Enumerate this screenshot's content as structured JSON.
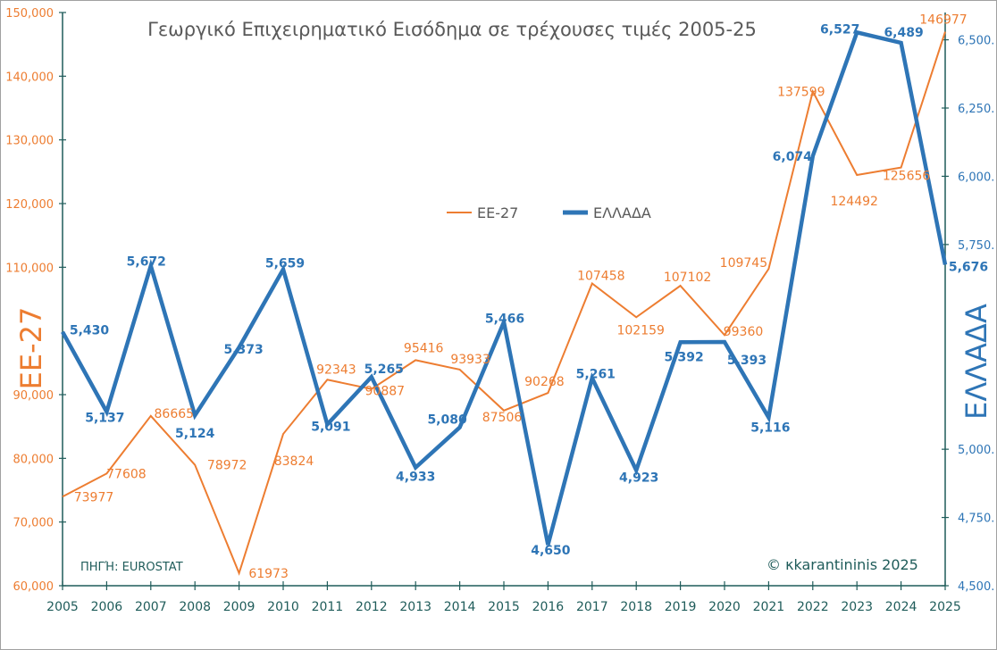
{
  "chart_data": {
    "type": "line",
    "title": "Γεωργικό Επιχειρηματικό Εισόδημα σε τρέχουσες τιμές 2005-25",
    "categories": [
      "2005",
      "2006",
      "2007",
      "2008",
      "2009",
      "2010",
      "2011",
      "2012",
      "2013",
      "2014",
      "2015",
      "2016",
      "2017",
      "2018",
      "2019",
      "2020",
      "2021",
      "2022",
      "2023",
      "2024",
      "2025"
    ],
    "series": [
      {
        "name": "ΕΕ-27",
        "axis": "left",
        "color": "#ED7D31",
        "values": [
          73977,
          77608,
          86665,
          78972,
          61973,
          83824,
          92343,
          90887,
          95416,
          93933,
          87506,
          90268,
          107458,
          102159,
          107102,
          99360,
          109745,
          137599,
          124492,
          125656,
          146977
        ],
        "labels": [
          "73977",
          "77608",
          "86665",
          "78972",
          "61973",
          "83824",
          "92343",
          "90887",
          "95416",
          "93933",
          "87506",
          "90268",
          "107458",
          "102159",
          "107102",
          "99360",
          "109745",
          "137599",
          "124492",
          "125656",
          "146977"
        ]
      },
      {
        "name": "ΕΛΛΑΔΑ",
        "axis": "right",
        "color": "#2E75B6",
        "values": [
          5430,
          5137,
          5672,
          5124,
          5373,
          5659,
          5091,
          5265,
          4933,
          5080,
          5466,
          4650,
          5261,
          4923,
          5392,
          5393,
          5116,
          6074,
          6527,
          6489,
          5676
        ],
        "labels": [
          "5,430",
          "5,137",
          "5,672",
          "5,124",
          "5,373",
          "5,659",
          "5,091",
          "5,265",
          "4,933",
          "5,080",
          "5,466",
          "4,650",
          "5,261",
          "4,923",
          "5,392",
          "5,393",
          "5,116",
          "6,074",
          "6,527",
          "6,489",
          "5,676"
        ]
      }
    ],
    "y_left": {
      "label": "ΕΕ-27",
      "ylim": [
        60000,
        150000
      ],
      "ticks": [
        60000,
        70000,
        80000,
        90000,
        110000,
        120000,
        130000,
        140000,
        150000
      ],
      "tick_labels": [
        "60,000",
        "70,000",
        "80,000",
        "90,000",
        "110,000",
        "120,000",
        "130,000",
        "140,000",
        "150,000"
      ]
    },
    "y_right": {
      "label": "ΕΛΛΑΔΑ",
      "ylim": [
        4500,
        6600
      ],
      "ticks": [
        4500,
        4750,
        5000,
        5750,
        6000,
        6250,
        6500
      ],
      "tick_labels": [
        "4,500.",
        "4,750.",
        "5,000.",
        "5,750.",
        "6,000.",
        "6,250.",
        "6,500."
      ]
    },
    "legend": "center-top",
    "grid": false,
    "source": "ΠΗΓΉ:  EUROSTAT",
    "copyright": "© κkarantininis 2025"
  },
  "colors": {
    "axis": "#1F5C5A",
    "title": "#595959"
  }
}
